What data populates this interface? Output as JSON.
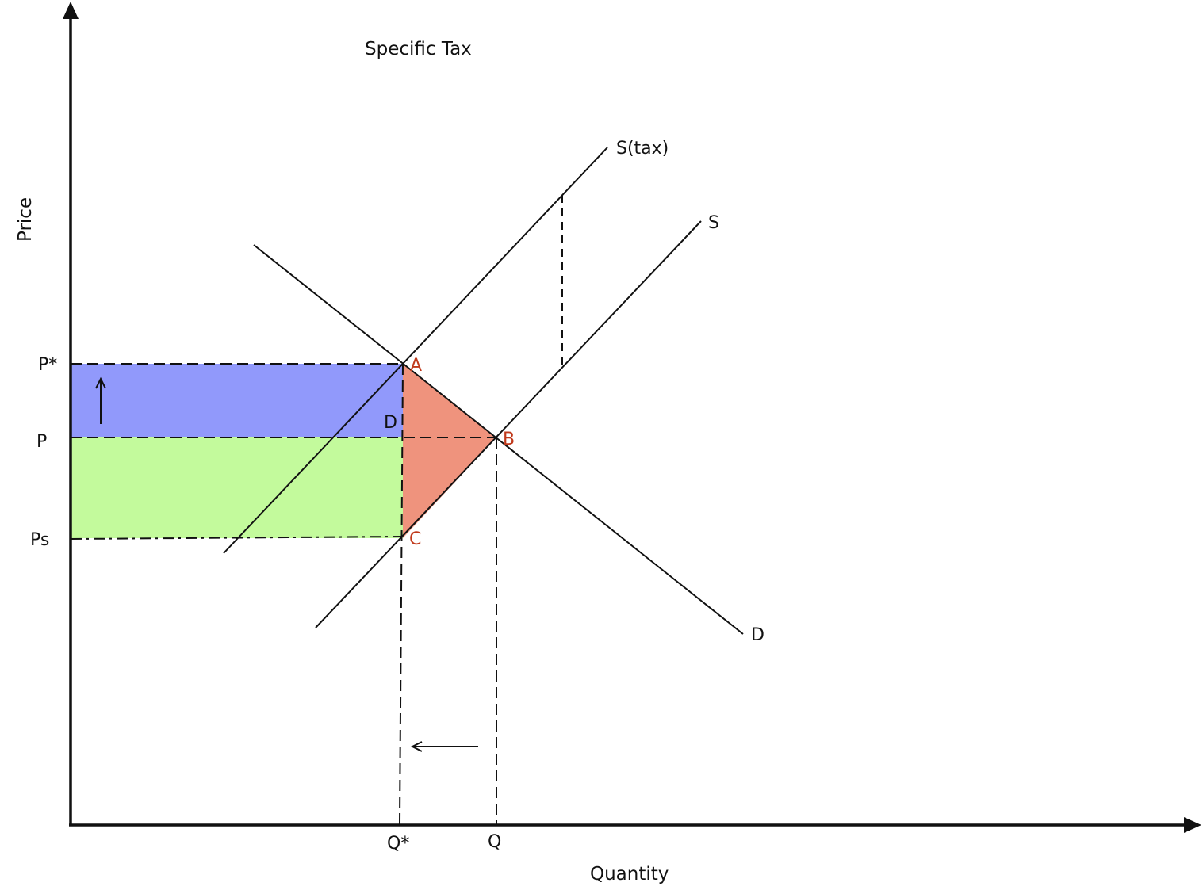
{
  "title": "Specific Tax",
  "axes": {
    "y_label": "Price",
    "x_label": "Quantity"
  },
  "price_labels": {
    "p_star": "P*",
    "p": "P",
    "ps": "Ps"
  },
  "quantity_labels": {
    "q_star": "Q*",
    "q": "Q"
  },
  "curves": {
    "supply_tax": "S(tax)",
    "supply": "S",
    "demand": "D"
  },
  "points": {
    "a": "A",
    "b": "B",
    "c": "C",
    "d": "D"
  },
  "colors": {
    "consumer_burden": "#9199fb",
    "producer_burden": "#c3fa9c",
    "deadweight_loss": "#ef937d",
    "point_label": "#c0391b",
    "line": "#111111"
  }
}
